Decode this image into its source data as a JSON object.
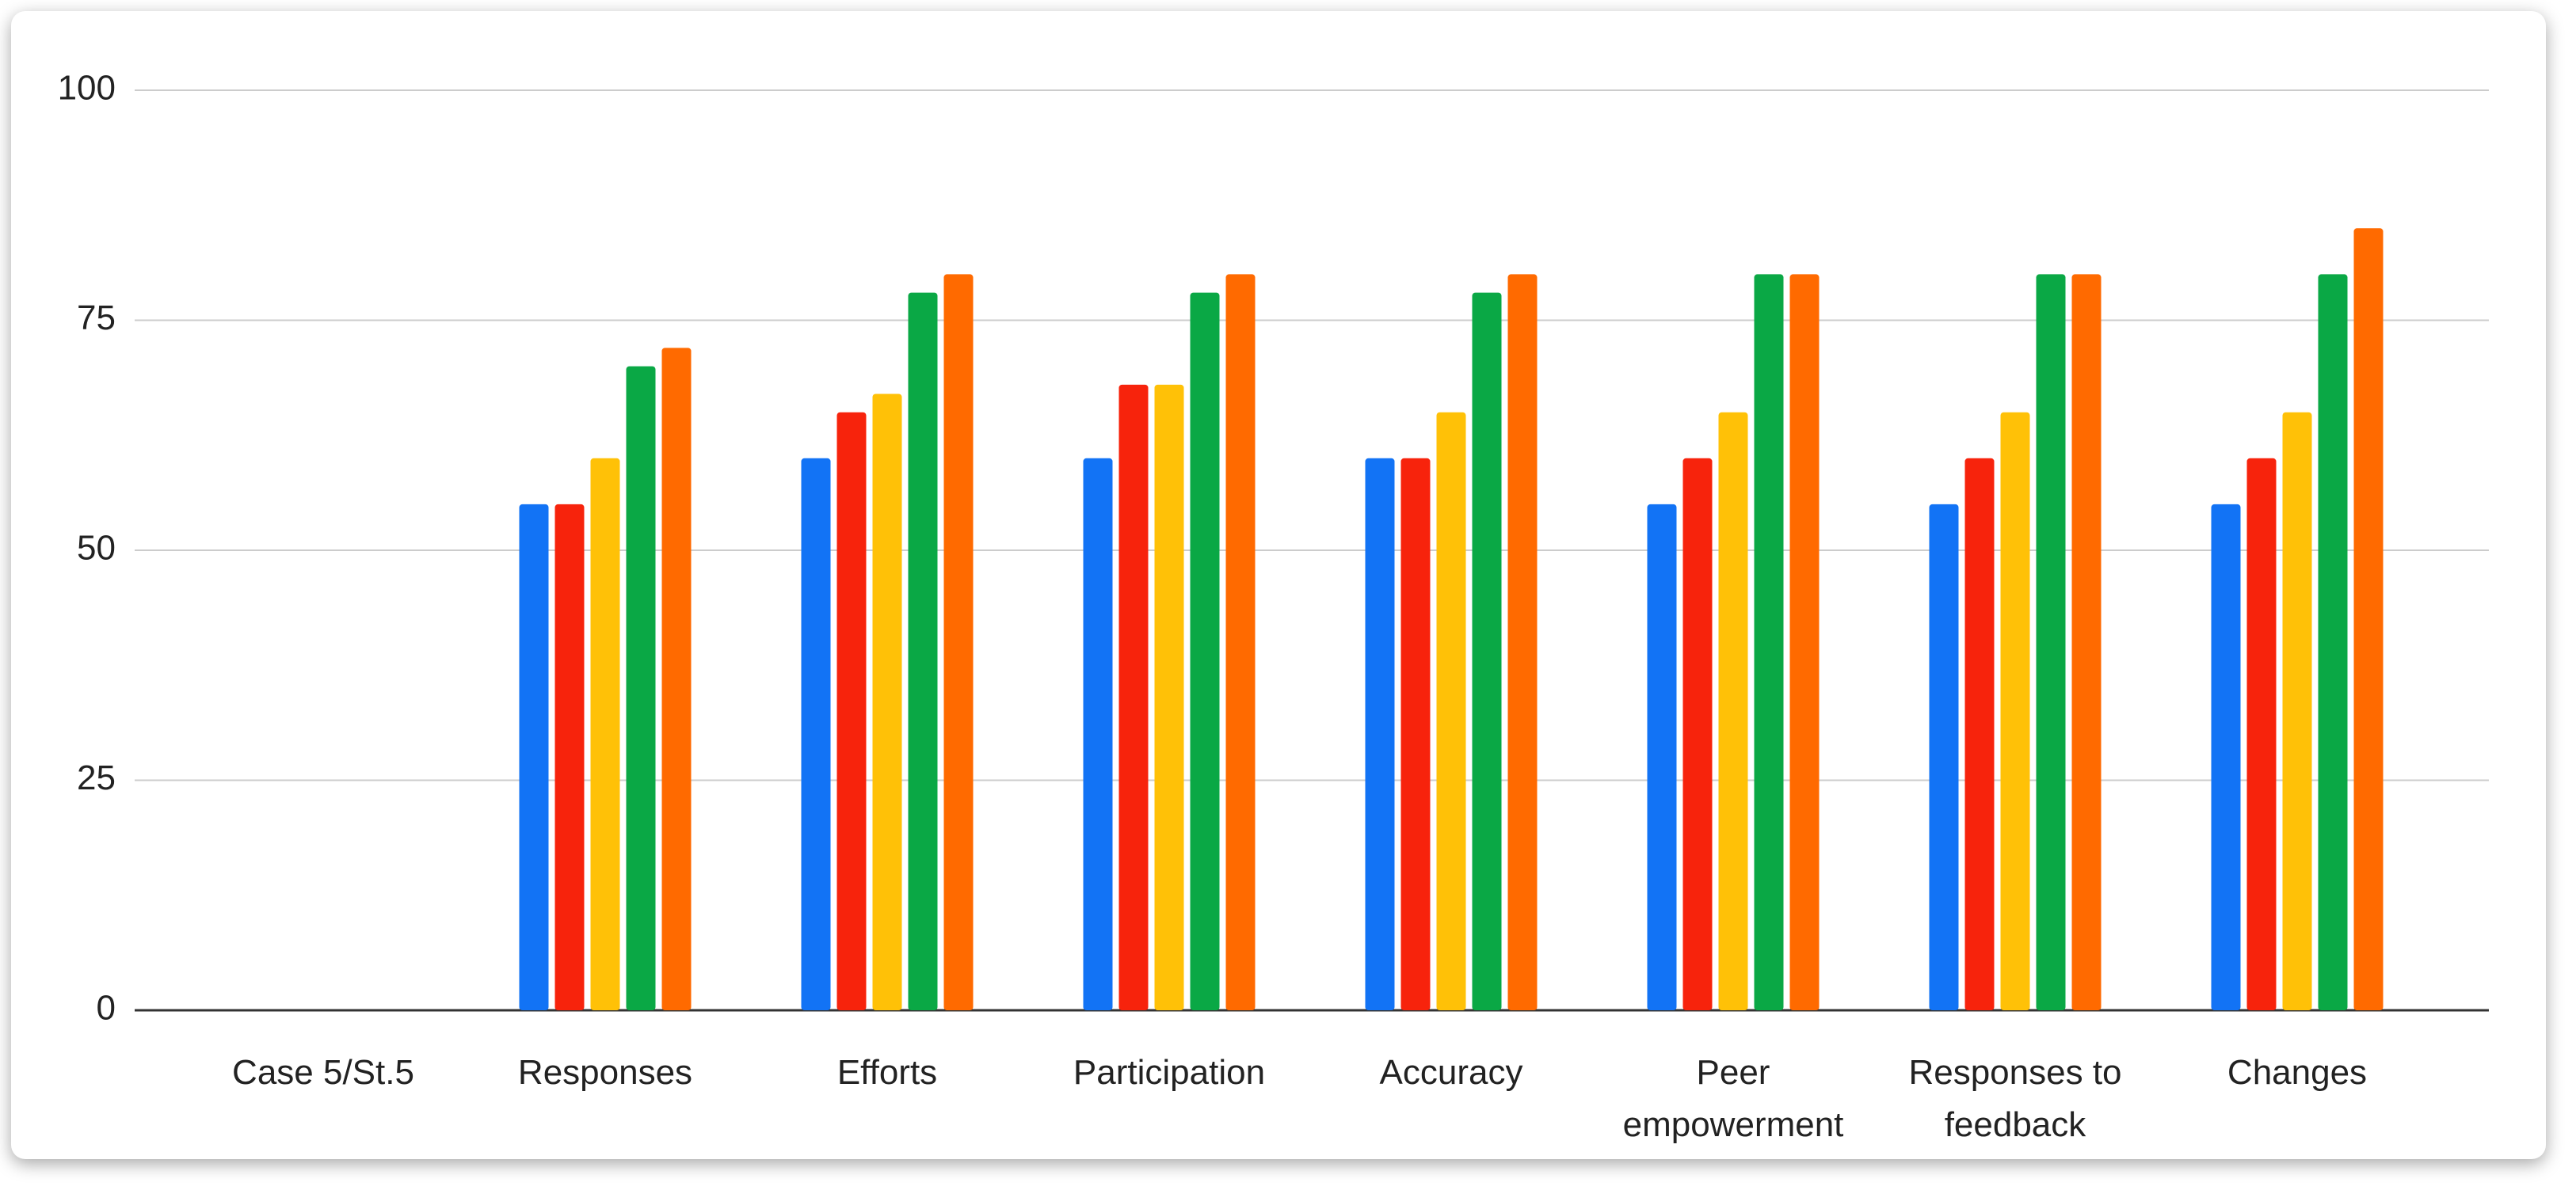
{
  "chart_data": {
    "type": "bar",
    "categories": [
      "Case 5/St.5",
      "Responses",
      "Efforts",
      "Participation",
      "Accuracy",
      "Peer empowerment",
      "Responses to feedback",
      "Changes"
    ],
    "series": [
      {
        "color": "#1273f5",
        "values": [
          null,
          55,
          60,
          60,
          60,
          55,
          55,
          55
        ]
      },
      {
        "color": "#f7230c",
        "values": [
          null,
          55,
          65,
          68,
          60,
          60,
          60,
          60
        ]
      },
      {
        "color": "#ffc107",
        "values": [
          null,
          60,
          67,
          68,
          65,
          65,
          65,
          65
        ]
      },
      {
        "color": "#0aa845",
        "values": [
          null,
          70,
          78,
          78,
          78,
          80,
          80,
          80
        ]
      },
      {
        "color": "#ff6a00",
        "values": [
          null,
          72,
          80,
          80,
          80,
          80,
          80,
          85
        ]
      }
    ],
    "ylim": [
      0,
      100
    ],
    "yticks": [
      0,
      25,
      50,
      75,
      100
    ],
    "grid": true
  }
}
